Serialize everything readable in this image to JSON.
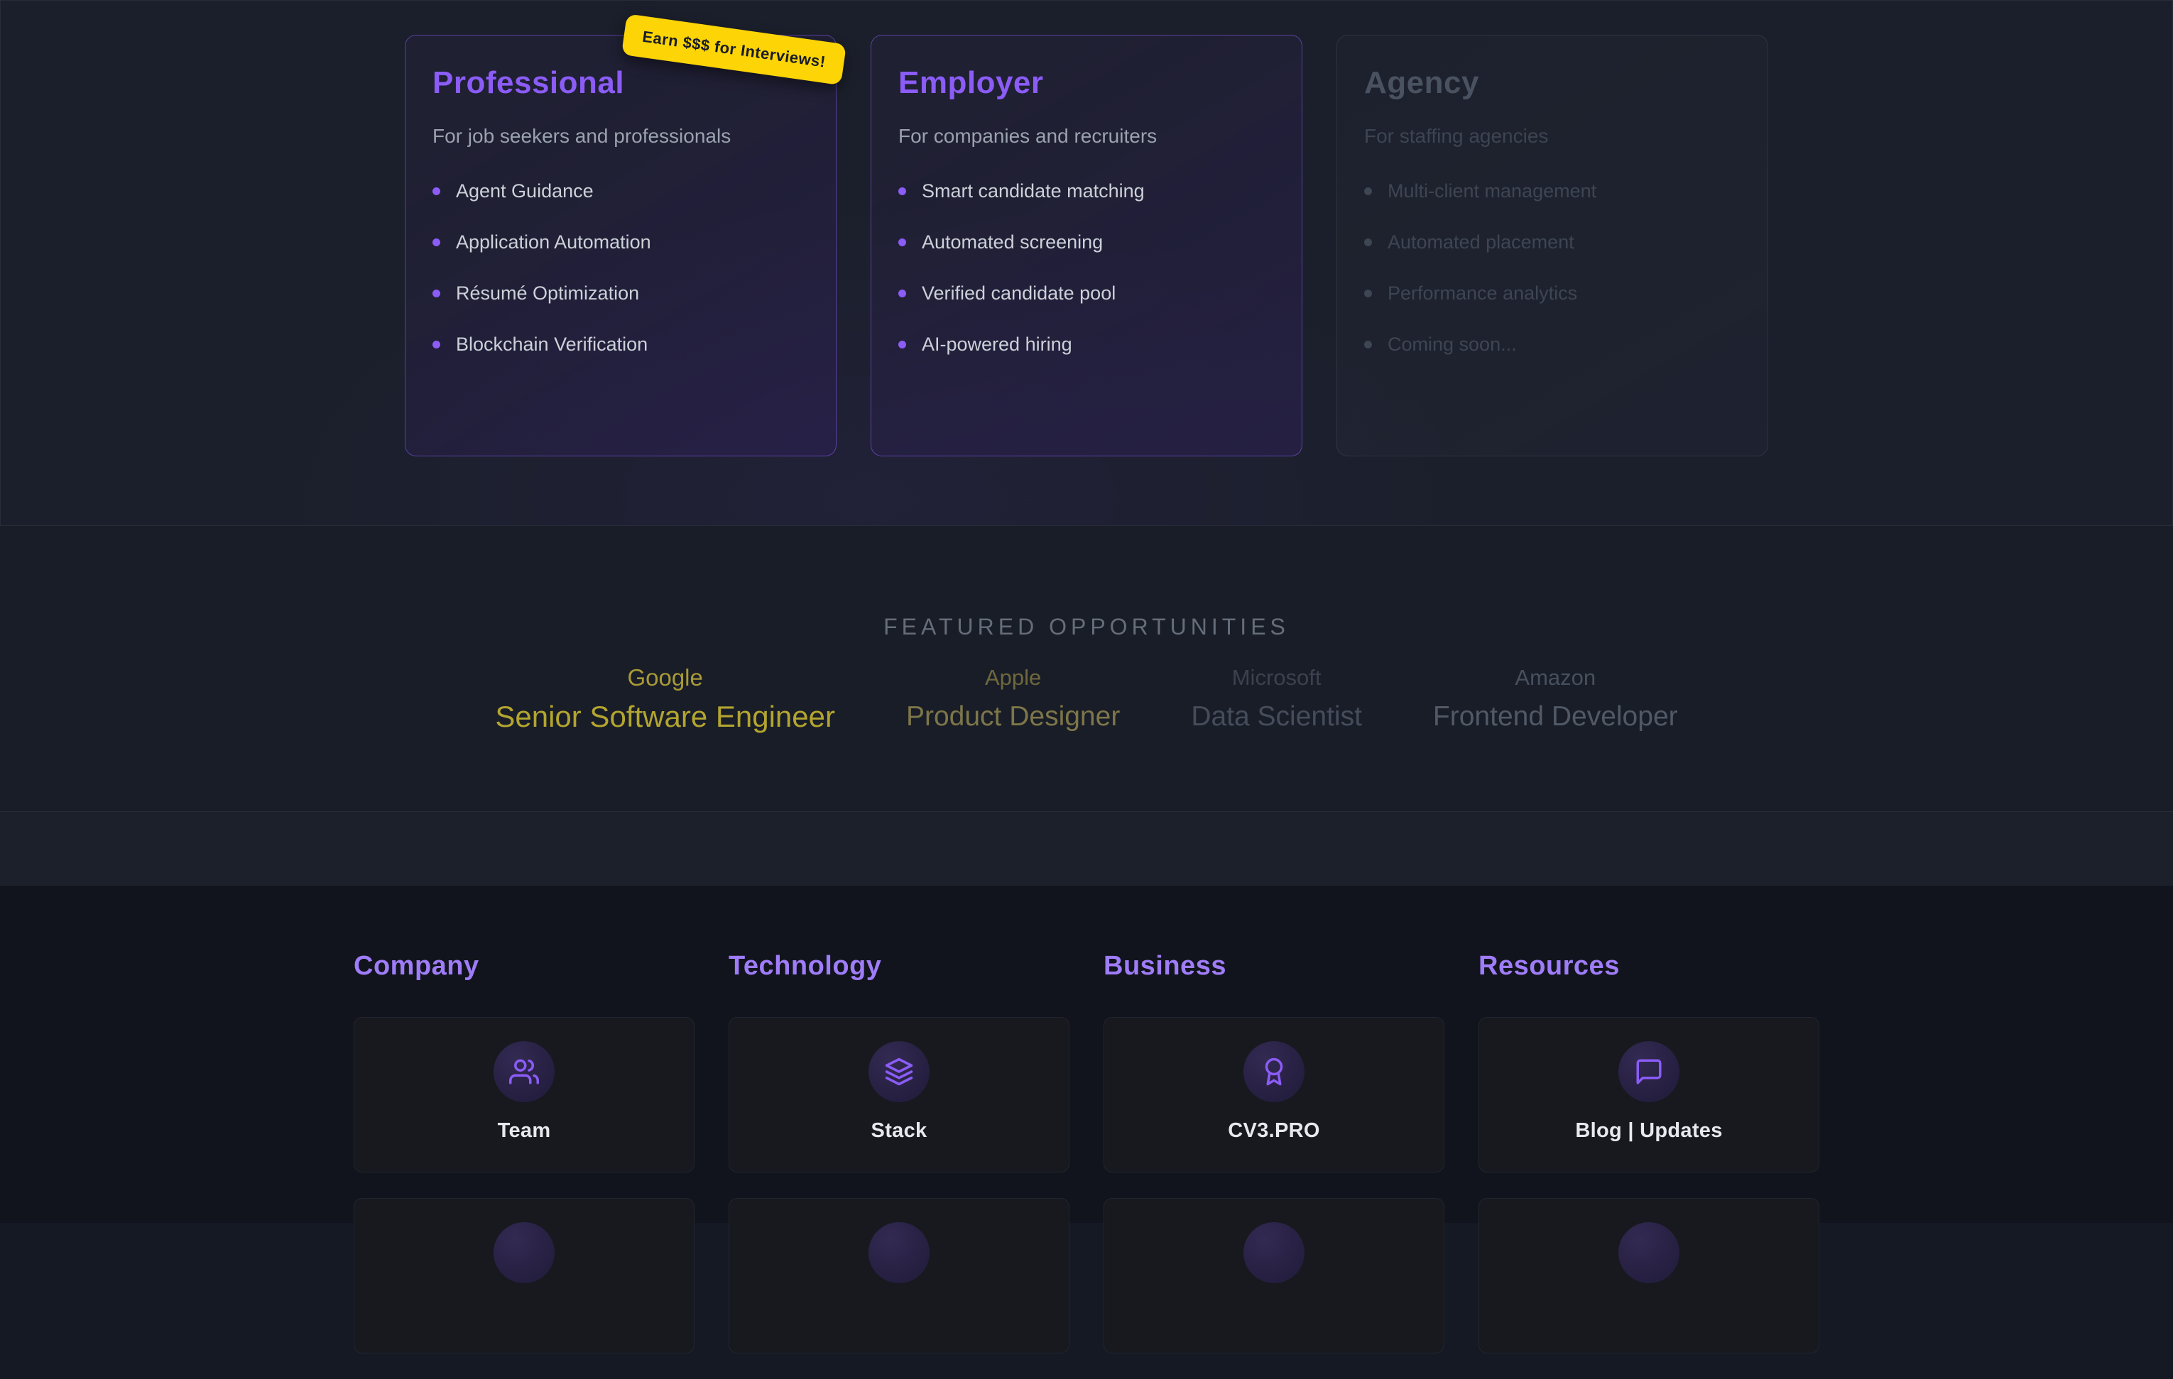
{
  "theme": {
    "accent_purple": "#8b5cf6",
    "footer_heading_purple": "#9f7cf8",
    "badge_yellow": "#fdd405",
    "featured_gold": "#b3a52f",
    "page_background": "#1b1f2b",
    "footer_background": "#11141c"
  },
  "plans": {
    "badge": "Earn $$$ for Interviews!",
    "cards": [
      {
        "title": "Professional",
        "subtitle": "For job seekers and professionals",
        "state": "active",
        "features": [
          "Agent Guidance",
          "Application Automation",
          "Résumé Optimization",
          "Blockchain Verification"
        ]
      },
      {
        "title": "Employer",
        "subtitle": "For companies and recruiters",
        "state": "active",
        "features": [
          "Smart candidate matching",
          "Automated screening",
          "Verified candidate pool",
          "AI-powered hiring"
        ]
      },
      {
        "title": "Agency",
        "subtitle": "For staffing agencies",
        "state": "disabled",
        "features": [
          "Multi-client management",
          "Automated placement",
          "Performance analytics",
          "Coming soon..."
        ]
      }
    ]
  },
  "featured": {
    "heading": "FEATURED OPPORTUNITIES",
    "jobs": [
      {
        "company": "Google",
        "role": "Senior Software Engineer"
      },
      {
        "company": "Apple",
        "role": "Product Designer"
      },
      {
        "company": "Microsoft",
        "role": "Data Scientist"
      },
      {
        "company": "Amazon",
        "role": "Frontend Developer"
      }
    ]
  },
  "footer": {
    "columns": [
      {
        "heading": "Company",
        "cards": [
          {
            "label": "Team",
            "icon": "users-icon"
          }
        ],
        "partial_card_below": true
      },
      {
        "heading": "Technology",
        "cards": [
          {
            "label": "Stack",
            "icon": "layers-icon"
          }
        ],
        "partial_card_below": true
      },
      {
        "heading": "Business",
        "cards": [
          {
            "label": "CV3.PRO",
            "icon": "award-icon"
          }
        ],
        "partial_card_below": true
      },
      {
        "heading": "Resources",
        "cards": [
          {
            "label": "Blog | Updates",
            "icon": "chat-icon"
          }
        ],
        "partial_card_below": true
      }
    ]
  }
}
